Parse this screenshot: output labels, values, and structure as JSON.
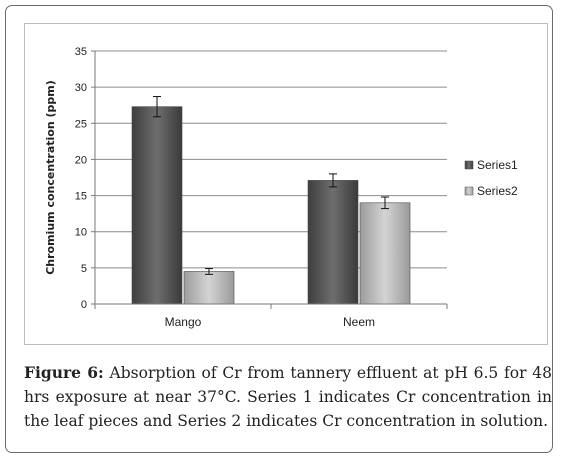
{
  "chart_data": {
    "type": "bar",
    "title": "",
    "xlabel": "",
    "ylabel": "Chromium concentration (ppm)",
    "ylim": [
      0,
      35
    ],
    "yticks": [
      0,
      5,
      10,
      15,
      20,
      25,
      30,
      35
    ],
    "categories": [
      "Mango",
      "Neem"
    ],
    "series": [
      {
        "name": "Series1",
        "values": [
          27.3,
          17.1
        ],
        "errors": [
          1.4,
          0.9
        ],
        "color": "#5b5b5b"
      },
      {
        "name": "Series2",
        "values": [
          4.5,
          14.0
        ],
        "errors": [
          0.4,
          0.8
        ],
        "color": "#bdbdbd"
      }
    ],
    "grid": true,
    "legend_position": "right"
  },
  "caption": {
    "label": "Figure 6:",
    "text": " Absorption of Cr from tannery effluent at pH 6.5 for 48 hrs exposure at near 37°C. Series 1 indicates Cr concentration in the leaf pieces and Series 2 indicates Cr concentration in solution."
  }
}
